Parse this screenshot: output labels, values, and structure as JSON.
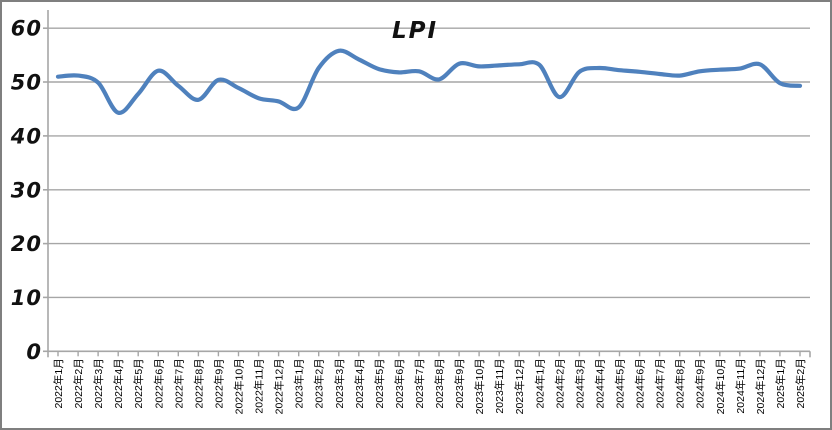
{
  "window": {
    "background": "#ffffff",
    "border_color": "#7f7f7f"
  },
  "chart_data": {
    "type": "line",
    "title": "LPI",
    "xlabel": "",
    "ylabel": "",
    "ylim": [
      0,
      60
    ],
    "yticks": [
      0,
      10,
      20,
      30,
      40,
      50,
      60
    ],
    "grid": true,
    "legend": "none",
    "smooth": true,
    "gridline_color": "#a6a6a6",
    "axis_color": "#a6a6a6",
    "categories": [
      "2022年1月",
      "2022年2月",
      "2022年3月",
      "2022年4月",
      "2022年5月",
      "2022年6月",
      "2022年7月",
      "2022年8月",
      "2022年9月",
      "2022年10月",
      "2022年11月",
      "2022年12月",
      "2023年1月",
      "2023年2月",
      "2023年3月",
      "2023年4月",
      "2023年5月",
      "2023年6月",
      "2023年7月",
      "2023年8月",
      "2023年9月",
      "2023年10月",
      "2023年11月",
      "2023年12月",
      "2024年1月",
      "2024年2月",
      "2024年3月",
      "2024年4月",
      "2024年5月",
      "2024年6月",
      "2024年7月",
      "2024年8月",
      "2024年9月",
      "2024年10月",
      "2024年11月",
      "2024年12月",
      "2025年1月",
      "2025年2月"
    ],
    "series": [
      {
        "name": "LPI",
        "color": "#4f81bd",
        "values": [
          51.0,
          51.2,
          49.9,
          44.3,
          47.8,
          52.1,
          49.3,
          46.7,
          50.4,
          48.9,
          47.0,
          46.4,
          45.3,
          52.6,
          55.8,
          54.2,
          52.4,
          51.8,
          52.0,
          50.5,
          53.4,
          52.9,
          53.1,
          53.3,
          53.2,
          47.2,
          51.9,
          52.6,
          52.2,
          51.9,
          51.5,
          51.2,
          52.0,
          52.3,
          52.5,
          53.3,
          49.8,
          49.3
        ]
      }
    ]
  }
}
